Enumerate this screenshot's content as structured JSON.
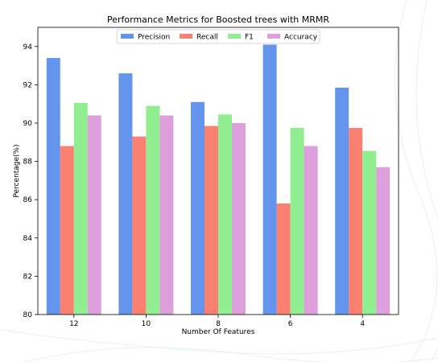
{
  "chart_data": {
    "type": "bar",
    "title": "Performance Metrics for Boosted trees with MRMR",
    "xlabel": "Number Of Features",
    "ylabel": "Percentage(%)",
    "categories": [
      "12",
      "10",
      "8",
      "6",
      "4"
    ],
    "ylim": [
      80,
      95
    ],
    "yticks": [
      80,
      82,
      84,
      86,
      88,
      90,
      92,
      94
    ],
    "grid": false,
    "legend_position": "top-center",
    "series": [
      {
        "name": "Precision",
        "color": "#6495ED",
        "values": [
          93.4,
          92.6,
          91.1,
          94.1,
          91.85
        ]
      },
      {
        "name": "Recall",
        "color": "#FA8072",
        "values": [
          88.8,
          89.3,
          89.85,
          85.8,
          89.75
        ]
      },
      {
        "name": "F1",
        "color": "#90EE90",
        "values": [
          91.05,
          90.9,
          90.45,
          89.75,
          88.55
        ]
      },
      {
        "name": "Accuracy",
        "color": "#DDA0DD",
        "values": [
          90.4,
          90.4,
          90.0,
          88.8,
          87.7
        ]
      }
    ]
  }
}
